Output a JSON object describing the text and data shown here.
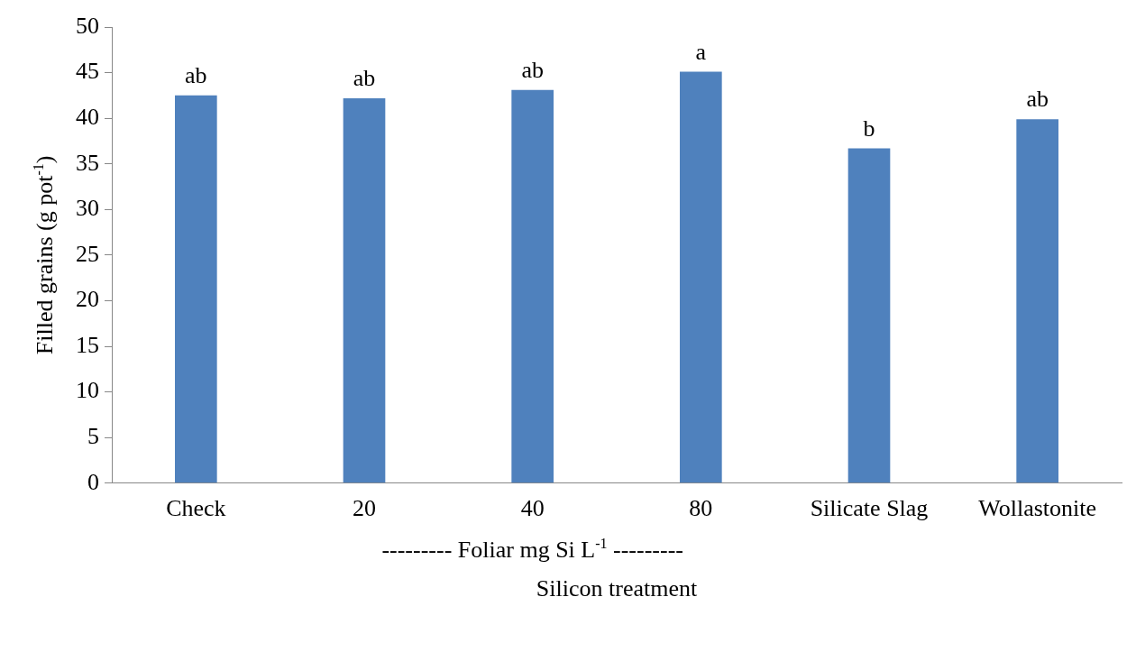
{
  "chart_data": {
    "type": "bar",
    "categories": [
      "Check",
      "20",
      "40",
      "80",
      "Silicate Slag",
      "Wollastonite"
    ],
    "values": [
      42.5,
      42.2,
      43.1,
      45.1,
      36.7,
      39.9
    ],
    "value_labels": [
      "ab",
      "ab",
      "ab",
      "a",
      "b",
      "ab"
    ],
    "color": "#4f81bd",
    "ylabel": "Filled grains (g pot$^{-1}$)",
    "xlabel": "Silicon treatment",
    "annotations": [
      "--------- Foliar mg Si L$^{-1}$ ---------"
    ],
    "ylim": [
      0,
      50
    ],
    "yticks": [
      0,
      5,
      10,
      15,
      20,
      25,
      30,
      35,
      40,
      45,
      50
    ],
    "grid": false,
    "legend": false
  }
}
